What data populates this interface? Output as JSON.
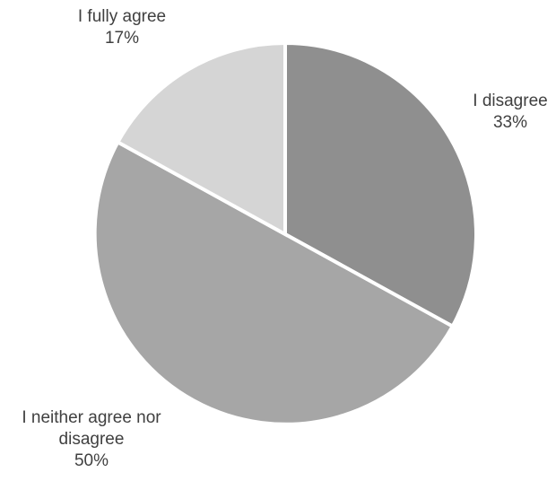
{
  "chart_data": {
    "type": "pie",
    "title": "",
    "start_angle_deg": 0,
    "direction": "clockwise",
    "slices": [
      {
        "label": "I disagree",
        "label_lines": [
          "I disagree"
        ],
        "value": 33,
        "percent_label": "33%",
        "color": "#8f8f8f"
      },
      {
        "label": "I neither agree nor disagree",
        "label_lines": [
          "I neither agree nor",
          "disagree"
        ],
        "value": 50,
        "percent_label": "50%",
        "color": "#a6a6a6"
      },
      {
        "label": "I fully agree",
        "label_lines": [
          "I fully agree"
        ],
        "value": 17,
        "percent_label": "17%",
        "color": "#d5d5d5"
      }
    ]
  }
}
